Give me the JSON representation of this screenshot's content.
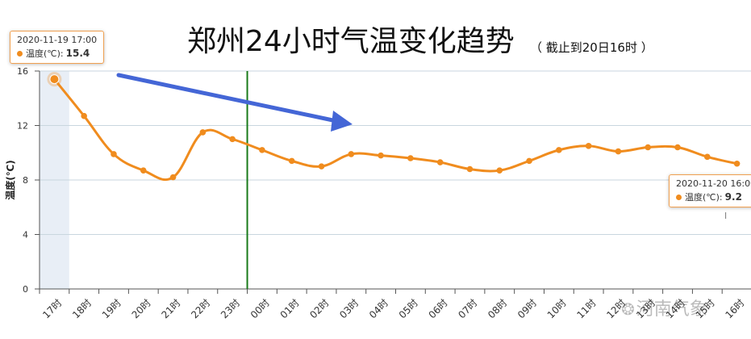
{
  "title": "郑州24小时气温变化趋势",
  "subtitle": "（ 截止到20日16时 ）",
  "watermark": "河南气象",
  "colors": {
    "line": "#f08c1e",
    "grid": "#c9d6df",
    "divider": "#1a7a1a",
    "arrow": "#4466d6",
    "highlight": "#e8eef6"
  },
  "tooltips": [
    {
      "time": "2020-11-19 17:00",
      "label": "温度(℃):",
      "value": "15.4"
    },
    {
      "time": "2020-11-20 16:00",
      "label": "温度(℃):",
      "value": "9.2"
    }
  ],
  "chart_data": {
    "type": "line",
    "ylabel": "温度(℃)",
    "ylim": [
      0,
      16
    ],
    "yticks": [
      0,
      4,
      8,
      12,
      16
    ],
    "grid": true,
    "categories": [
      "17时",
      "18时",
      "19时",
      "20时",
      "21时",
      "22时",
      "23时",
      "00时",
      "01时",
      "02时",
      "03时",
      "04时",
      "05时",
      "06时",
      "07时",
      "08时",
      "09时",
      "10时",
      "11时",
      "12时",
      "13时",
      "14时",
      "15时",
      "16时"
    ],
    "series": [
      {
        "values": [
          15.4,
          12.7,
          9.9,
          8.7,
          8.2,
          11.5,
          11.0,
          10.2,
          9.4,
          9.0,
          9.9,
          9.8,
          9.6,
          9.3,
          8.8,
          8.7,
          9.4,
          10.2,
          10.5,
          10.1,
          10.4,
          10.4,
          9.7,
          9.2
        ]
      }
    ],
    "vertical_marker_category": "00时",
    "highlighted_category": "17时"
  }
}
